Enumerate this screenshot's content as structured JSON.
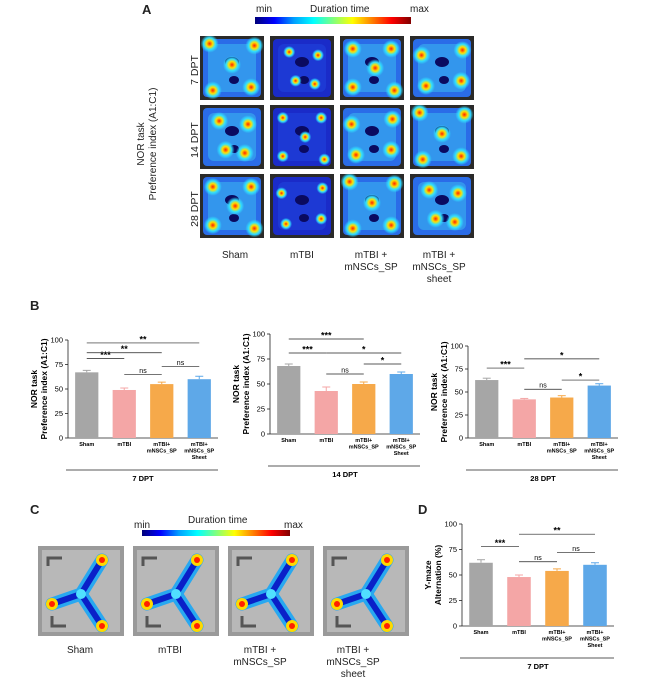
{
  "panelA": {
    "letter": "A",
    "colorbar": {
      "min": "min",
      "title": "Duration time",
      "max": "max"
    },
    "ylabel_line1": "NOR task",
    "ylabel_line2": "Preference index (A1:C1)",
    "rows": [
      "7 DPT",
      "14 DPT",
      "28 DPT"
    ],
    "groups": [
      [
        "Sham"
      ],
      [
        "mTBI"
      ],
      [
        "mTBI +",
        "mNSCs_SP"
      ],
      [
        "mTBI +",
        "mNSCs_SP",
        "sheet"
      ]
    ]
  },
  "panelB": {
    "letter": "B"
  },
  "panelC": {
    "letter": "C",
    "colorbar": {
      "min": "min",
      "title": "Duration time",
      "max": "max"
    },
    "groups": [
      [
        "Sham"
      ],
      [
        "mTBI"
      ],
      [
        "mTBI +",
        "mNSCs_SP"
      ],
      [
        "mTBI +",
        "mNSCs_SP",
        "sheet"
      ]
    ]
  },
  "panelD": {
    "letter": "D"
  },
  "colors": {
    "sham": "#a6a6a6",
    "mtbi": "#f4a6a6",
    "sp": "#f6a94a",
    "sheet": "#5ea8e8",
    "frame": "#404040"
  },
  "chart_data": [
    {
      "id": "B1",
      "type": "bar",
      "categories": [
        [
          "Sham"
        ],
        [
          "mTBI"
        ],
        [
          "mTBI+",
          "mNSCs_SP"
        ],
        [
          "mTBI+",
          "mNSCs_SP",
          "Sheet"
        ]
      ],
      "values": [
        67,
        49,
        55,
        60
      ],
      "errors": [
        2,
        2,
        2,
        3
      ],
      "ylabel": [
        "NOR task",
        "Preference index (A1:C1)"
      ],
      "xlabel": "7 DPT",
      "ylim": [
        0,
        100
      ],
      "yticks": [
        0,
        25,
        50,
        75,
        100
      ],
      "annotations": [
        {
          "from": 0,
          "to": 1,
          "text": "***",
          "y": 81
        },
        {
          "from": 0,
          "to": 2,
          "text": "**",
          "y": 87
        },
        {
          "from": 0,
          "to": 3,
          "text": "**",
          "y": 97
        },
        {
          "from": 1,
          "to": 2,
          "text": "ns",
          "y": 65
        },
        {
          "from": 2,
          "to": 3,
          "text": "ns",
          "y": 73
        }
      ]
    },
    {
      "id": "B2",
      "type": "bar",
      "categories": [
        [
          "Sham"
        ],
        [
          "mTBI"
        ],
        [
          "mTBI+",
          "mNSCs_SP"
        ],
        [
          "mTBI+",
          "mNSCs_SP",
          "Sheet"
        ]
      ],
      "values": [
        68,
        43,
        50,
        60
      ],
      "errors": [
        2,
        4,
        2,
        2
      ],
      "ylabel": [
        "NOR task",
        "Preference index (A1:C1)"
      ],
      "xlabel": "14 DPT",
      "ylim": [
        0,
        100
      ],
      "yticks": [
        0,
        25,
        50,
        75,
        100
      ],
      "annotations": [
        {
          "from": 0,
          "to": 1,
          "text": "***",
          "y": 81
        },
        {
          "from": 0,
          "to": 2,
          "text": "***",
          "y": 95
        },
        {
          "from": 1,
          "to": 3,
          "text": "*",
          "y": 81
        },
        {
          "from": 1,
          "to": 2,
          "text": "ns",
          "y": 60
        },
        {
          "from": 2,
          "to": 3,
          "text": "*",
          "y": 70
        }
      ]
    },
    {
      "id": "B3",
      "type": "bar",
      "categories": [
        [
          "Sham"
        ],
        [
          "mTBI"
        ],
        [
          "mTBI+",
          "mNSCs_SP"
        ],
        [
          "mTBI+",
          "mNSCs_SP",
          "Sheet"
        ]
      ],
      "values": [
        63,
        42,
        44,
        57
      ],
      "errors": [
        2,
        1,
        2,
        2
      ],
      "ylabel": [
        "NOR task",
        "Preference index (A1:C1)"
      ],
      "xlabel": "28 DPT",
      "ylim": [
        0,
        100
      ],
      "yticks": [
        0,
        25,
        50,
        75,
        100
      ],
      "annotations": [
        {
          "from": 0,
          "to": 1,
          "text": "***",
          "y": 76
        },
        {
          "from": 1,
          "to": 3,
          "text": "*",
          "y": 86
        },
        {
          "from": 1,
          "to": 2,
          "text": "ns",
          "y": 53
        },
        {
          "from": 2,
          "to": 3,
          "text": "*",
          "y": 63
        }
      ]
    },
    {
      "id": "D",
      "type": "bar",
      "categories": [
        [
          "Sham"
        ],
        [
          "mTBI"
        ],
        [
          "mTBI+",
          "mNSCs_SP"
        ],
        [
          "mTBI+",
          "mNSCs_SP",
          "Sheet"
        ]
      ],
      "values": [
        62,
        48,
        54,
        60
      ],
      "errors": [
        3,
        2,
        2,
        2
      ],
      "ylabel": [
        "Y-maze",
        "Alternation (%)"
      ],
      "xlabel": "7 DPT",
      "ylim": [
        0,
        100
      ],
      "yticks": [
        0,
        25,
        50,
        75,
        100
      ],
      "annotations": [
        {
          "from": 0,
          "to": 1,
          "text": "***",
          "y": 78
        },
        {
          "from": 1,
          "to": 3,
          "text": "**",
          "y": 90
        },
        {
          "from": 1,
          "to": 2,
          "text": "ns",
          "y": 63
        },
        {
          "from": 2,
          "to": 3,
          "text": "ns",
          "y": 72
        }
      ]
    }
  ]
}
